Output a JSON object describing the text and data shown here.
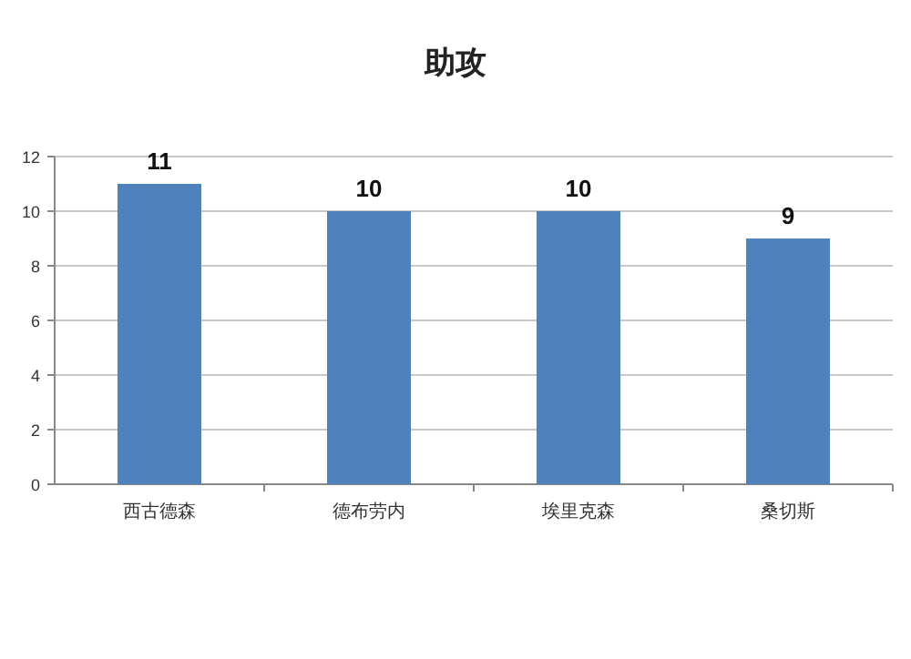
{
  "chart_data": {
    "type": "bar",
    "title": "助攻",
    "categories": [
      "西古德森",
      "德布劳内",
      "埃里克森",
      "桑切斯"
    ],
    "values": [
      11,
      10,
      10,
      9
    ],
    "color": "#4f81bd",
    "ylim": [
      0,
      12
    ],
    "yticks": [
      0,
      2,
      4,
      6,
      8,
      10,
      12
    ],
    "grid": "y",
    "data_labels": true
  }
}
